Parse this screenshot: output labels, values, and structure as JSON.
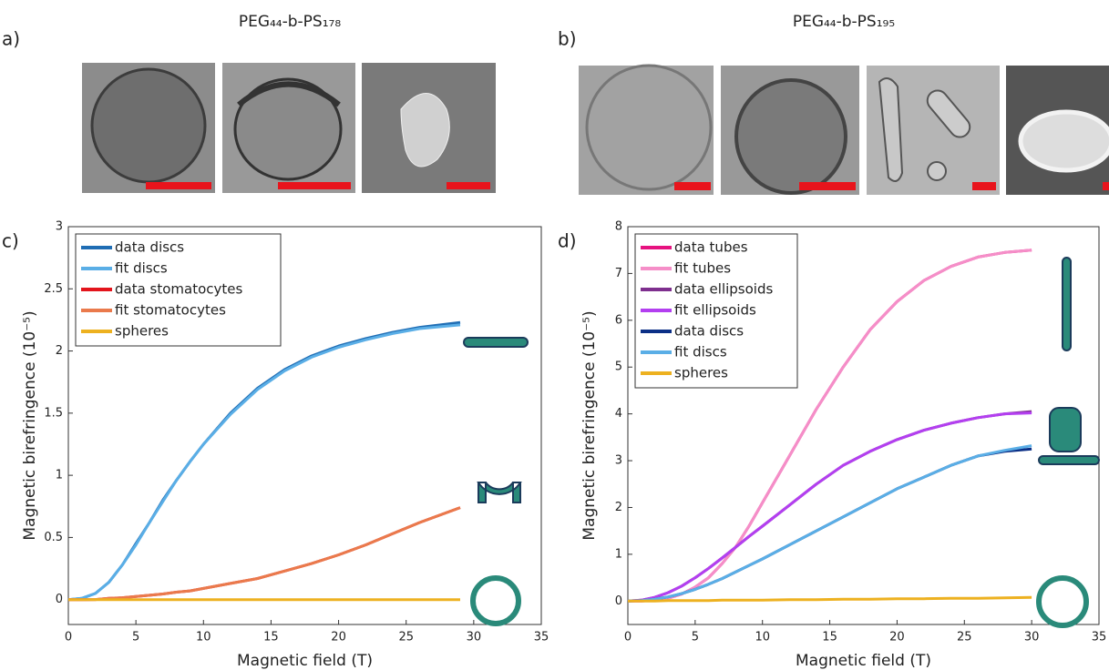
{
  "panels": {
    "labels": [
      "a)",
      "b)",
      "c)",
      "d)"
    ],
    "titles": [
      "PEG₄₄-b-PS₁₇₈",
      "PEG₄₄-b-PS₁₉₅"
    ]
  },
  "chart_data": [
    {
      "type": "line",
      "xlabel": "Magnetic field (T)",
      "ylabel": "Magnetic birefringence (10⁻⁵)",
      "xlim": [
        0,
        35
      ],
      "xticks": [
        0,
        5,
        10,
        15,
        20,
        25,
        30,
        35
      ],
      "ylim": [
        -0.2,
        3
      ],
      "yticks": [
        0,
        0.5,
        1,
        1.5,
        2,
        2.5,
        3
      ],
      "legend": "upper left",
      "x": [
        0,
        1,
        2,
        3,
        4,
        5,
        6,
        7,
        8,
        9,
        10,
        12,
        14,
        16,
        18,
        20,
        22,
        24,
        26,
        29
      ],
      "series": [
        {
          "name": "data discs",
          "color": "#1f6db4",
          "values": [
            0,
            0.01,
            0.05,
            0.14,
            0.28,
            0.45,
            0.62,
            0.8,
            0.96,
            1.11,
            1.25,
            1.5,
            1.7,
            1.85,
            1.96,
            2.04,
            2.1,
            2.15,
            2.19,
            2.23
          ]
        },
        {
          "name": "fit discs",
          "color": "#5aaee6",
          "values": [
            0,
            0.01,
            0.05,
            0.14,
            0.28,
            0.44,
            0.62,
            0.79,
            0.96,
            1.11,
            1.25,
            1.49,
            1.69,
            1.84,
            1.95,
            2.03,
            2.09,
            2.14,
            2.18,
            2.21
          ]
        },
        {
          "name": "data stomatocytes",
          "color": "#e3141c",
          "values": [
            0,
            0,
            0.001,
            0.01,
            0.015,
            0.025,
            0.035,
            0.045,
            0.06,
            0.07,
            0.09,
            0.13,
            0.17,
            0.23,
            0.29,
            0.36,
            0.44,
            0.53,
            0.62,
            0.74
          ]
        },
        {
          "name": "fit stomatocytes",
          "color": "#ea7a4c",
          "values": [
            0,
            0,
            0.001,
            0.01,
            0.015,
            0.025,
            0.035,
            0.045,
            0.06,
            0.07,
            0.09,
            0.13,
            0.17,
            0.23,
            0.29,
            0.36,
            0.44,
            0.53,
            0.62,
            0.74
          ]
        },
        {
          "name": "spheres",
          "color": "#edb120",
          "values": [
            0,
            0,
            0,
            0,
            0,
            0,
            0,
            0,
            0,
            0,
            0,
            0,
            0,
            0,
            0,
            0,
            0,
            0,
            0,
            0
          ]
        }
      ]
    },
    {
      "type": "line",
      "xlabel": "Magnetic field (T)",
      "ylabel": "Magnetic birefringence (10⁻⁵)",
      "xlim": [
        0,
        35
      ],
      "xticks": [
        0,
        5,
        10,
        15,
        20,
        25,
        30,
        35
      ],
      "ylim": [
        -0.5,
        8
      ],
      "yticks": [
        0,
        1,
        2,
        3,
        4,
        5,
        6,
        7,
        8
      ],
      "legend": "upper left",
      "x": [
        0,
        1,
        2,
        3,
        4,
        5,
        6,
        7,
        8,
        9,
        10,
        12,
        14,
        16,
        18,
        20,
        22,
        24,
        26,
        28,
        30
      ],
      "series": [
        {
          "name": "data tubes",
          "color": "#e6127f",
          "values": [
            0,
            0,
            0.02,
            0.06,
            0.15,
            0.3,
            0.5,
            0.8,
            1.15,
            1.6,
            2.1,
            3.1,
            4.1,
            5.0,
            5.8,
            6.4,
            6.85,
            7.15,
            7.35,
            7.45,
            7.5
          ]
        },
        {
          "name": "fit tubes",
          "color": "#f58ec8",
          "values": [
            0,
            0,
            0.02,
            0.06,
            0.15,
            0.3,
            0.5,
            0.8,
            1.15,
            1.6,
            2.1,
            3.1,
            4.1,
            5.0,
            5.8,
            6.4,
            6.85,
            7.15,
            7.35,
            7.45,
            7.5
          ]
        },
        {
          "name": "data ellipsoids",
          "color": "#7e2f8e",
          "values": [
            0,
            0.02,
            0.08,
            0.18,
            0.32,
            0.5,
            0.7,
            0.92,
            1.15,
            1.38,
            1.6,
            2.05,
            2.5,
            2.9,
            3.2,
            3.45,
            3.65,
            3.8,
            3.92,
            4.0,
            4.05
          ]
        },
        {
          "name": "fit ellipsoids",
          "color": "#b33ff0",
          "values": [
            0,
            0.02,
            0.08,
            0.18,
            0.32,
            0.5,
            0.7,
            0.92,
            1.15,
            1.38,
            1.6,
            2.05,
            2.5,
            2.9,
            3.2,
            3.45,
            3.65,
            3.8,
            3.92,
            4.0,
            4.02
          ]
        },
        {
          "name": "data discs",
          "color": "#0b2f86",
          "values": [
            0,
            0.01,
            0.04,
            0.09,
            0.16,
            0.25,
            0.36,
            0.48,
            0.62,
            0.76,
            0.9,
            1.2,
            1.5,
            1.8,
            2.1,
            2.4,
            2.65,
            2.9,
            3.1,
            3.2,
            3.25
          ]
        },
        {
          "name": "fit discs",
          "color": "#5aaee6",
          "values": [
            0,
            0.01,
            0.04,
            0.09,
            0.16,
            0.25,
            0.36,
            0.48,
            0.62,
            0.76,
            0.9,
            1.2,
            1.5,
            1.8,
            2.1,
            2.4,
            2.65,
            2.9,
            3.1,
            3.22,
            3.32
          ]
        },
        {
          "name": "spheres",
          "color": "#edb120",
          "values": [
            0,
            0,
            0,
            0.01,
            0.01,
            0.01,
            0.01,
            0.02,
            0.02,
            0.02,
            0.02,
            0.03,
            0.03,
            0.04,
            0.04,
            0.05,
            0.05,
            0.06,
            0.06,
            0.07,
            0.08
          ]
        }
      ]
    }
  ]
}
